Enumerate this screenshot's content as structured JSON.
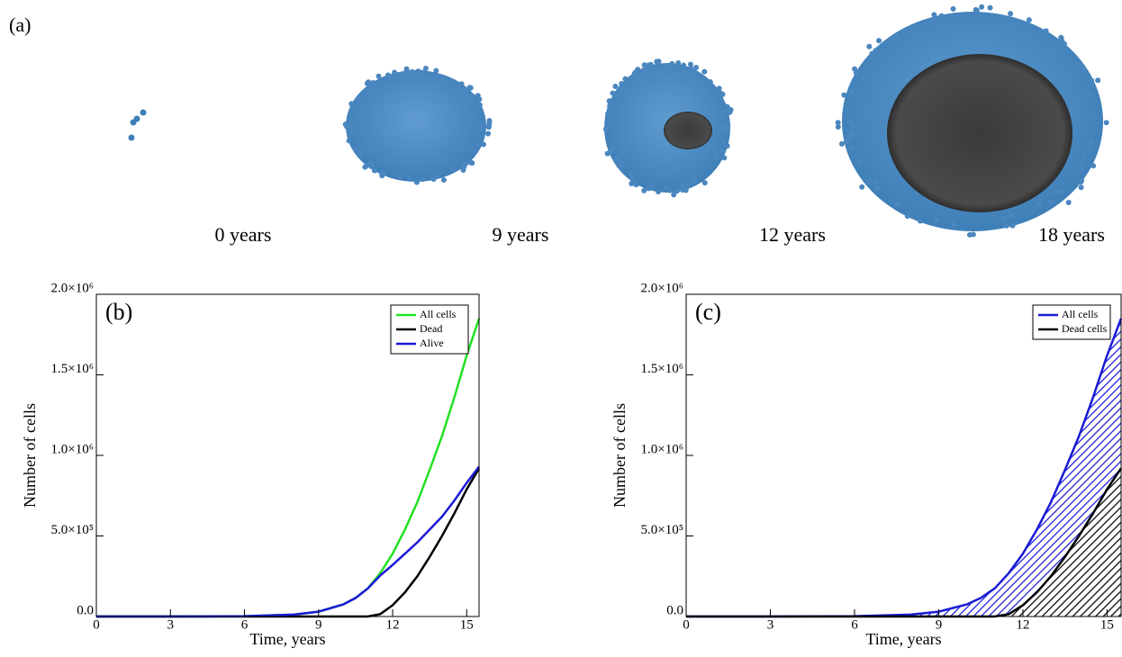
{
  "panel_a": {
    "label": "(a)",
    "captions": [
      "0 years",
      "9 years",
      "12 years",
      "18 years"
    ]
  },
  "chart_data": [
    {
      "type": "line",
      "panel_label": "(b)",
      "x_label": "Time, years",
      "y_label": "Number of cells",
      "x": [
        0,
        3,
        6,
        8,
        9,
        10,
        10.5,
        11,
        11.5,
        12,
        12.5,
        13,
        13.5,
        14,
        14.5,
        15,
        15.5
      ],
      "series": [
        {
          "name": "All cells",
          "color": "#22e022",
          "values": [
            0,
            0,
            2000,
            12000,
            30000,
            75000,
            115000,
            175000,
            270000,
            390000,
            540000,
            710000,
            910000,
            1120000,
            1360000,
            1620000,
            1850000
          ]
        },
        {
          "name": "Dead",
          "color": "#000000",
          "values": [
            0,
            0,
            0,
            0,
            0,
            0,
            0,
            0,
            15000,
            70000,
            150000,
            250000,
            370000,
            500000,
            640000,
            790000,
            920000
          ]
        },
        {
          "name": "Alive",
          "color": "#1a1ad6",
          "values": [
            0,
            0,
            2000,
            12000,
            30000,
            75000,
            115000,
            175000,
            255000,
            320000,
            390000,
            460000,
            540000,
            620000,
            720000,
            830000,
            930000
          ]
        }
      ],
      "xlim": [
        0,
        15.5
      ],
      "xticks": [
        0,
        3,
        6,
        9,
        12,
        15
      ],
      "ylim": [
        0,
        2000000
      ],
      "yticks": [
        {
          "value": 0,
          "label": "0.0"
        },
        {
          "value": 500000,
          "label": "5.0×10⁵"
        },
        {
          "value": 1000000,
          "label": "1.0×10⁶"
        },
        {
          "value": 1500000,
          "label": "1.5×10⁶"
        },
        {
          "value": 2000000,
          "label": "2.0×10⁶"
        }
      ],
      "legend": "upper right"
    },
    {
      "type": "area",
      "panel_label": "(c)",
      "x_label": "Time, years",
      "y_label": "Number of cells",
      "x": [
        0,
        3,
        6,
        8,
        9,
        10,
        10.5,
        11,
        11.5,
        12,
        12.5,
        13,
        13.5,
        14,
        14.5,
        15,
        15.5
      ],
      "series": [
        {
          "name": "All cells",
          "color": "#1a1ad6",
          "values": [
            0,
            0,
            2000,
            12000,
            30000,
            75000,
            115000,
            175000,
            270000,
            390000,
            540000,
            710000,
            910000,
            1120000,
            1360000,
            1620000,
            1850000
          ]
        },
        {
          "name": "Dead cells",
          "color": "#000000",
          "values": [
            0,
            0,
            0,
            0,
            0,
            0,
            0,
            0,
            15000,
            70000,
            150000,
            250000,
            370000,
            500000,
            640000,
            790000,
            920000
          ]
        }
      ],
      "xlim": [
        0,
        15.5
      ],
      "xticks": [
        0,
        3,
        6,
        9,
        12,
        15
      ],
      "ylim": [
        0,
        2000000
      ],
      "yticks": [
        {
          "value": 0,
          "label": "0.0"
        },
        {
          "value": 500000,
          "label": "5.0×10⁵"
        },
        {
          "value": 1000000,
          "label": "1.0×10⁶"
        },
        {
          "value": 1500000,
          "label": "1.5×10⁶"
        },
        {
          "value": 2000000,
          "label": "2.0×10⁶"
        }
      ],
      "legend": "upper right"
    }
  ]
}
